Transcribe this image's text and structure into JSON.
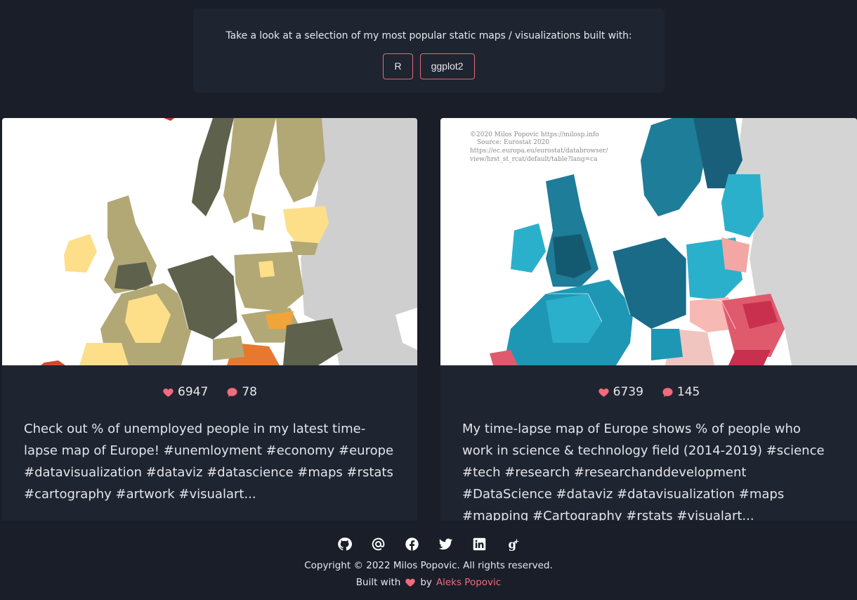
{
  "intro": {
    "text": "Take a look at a selection of my most popular static maps / visualizations built with:",
    "tags": [
      "R",
      "ggplot2"
    ]
  },
  "cards": [
    {
      "likes": "6947",
      "comments": "78",
      "description": "Check out % of unemployed people in my latest time-lapse map of Europe! #unemloyment #economy #europe #datavisualization #dataviz #datascience #maps #rstats #cartography #artwork #visualart..."
    },
    {
      "likes": "6739",
      "comments": "145",
      "description": "My time-lapse map of Europe shows % of people who work in science & technology field (2014-2019) #science #tech #research #researchanddevelopment #DataScience #dataviz #datavisualization #maps #mapping #Cartography #rstats #visualart...",
      "credit": [
        "©2020 Milos Popovic https://milosp.info",
        "Source: Eurostat 2020",
        "https://ec.europa.eu/eurostat/databrowser/",
        "view/hrst_st_rcat/default/table?lang=ca"
      ]
    }
  ],
  "footer": {
    "icons": [
      "github-icon",
      "email-icon",
      "facebook-icon",
      "twitter-icon",
      "linkedin-icon",
      "google-scholar-icon"
    ],
    "copyright": "Copyright © 2022 Milos Popovic. All rights reserved.",
    "built_prefix": "Built with",
    "built_by": "by",
    "author": "Aleks Popovic"
  },
  "colors": {
    "accent": "#f06b7c",
    "background": "#1a1e29",
    "card": "#1f2431"
  }
}
